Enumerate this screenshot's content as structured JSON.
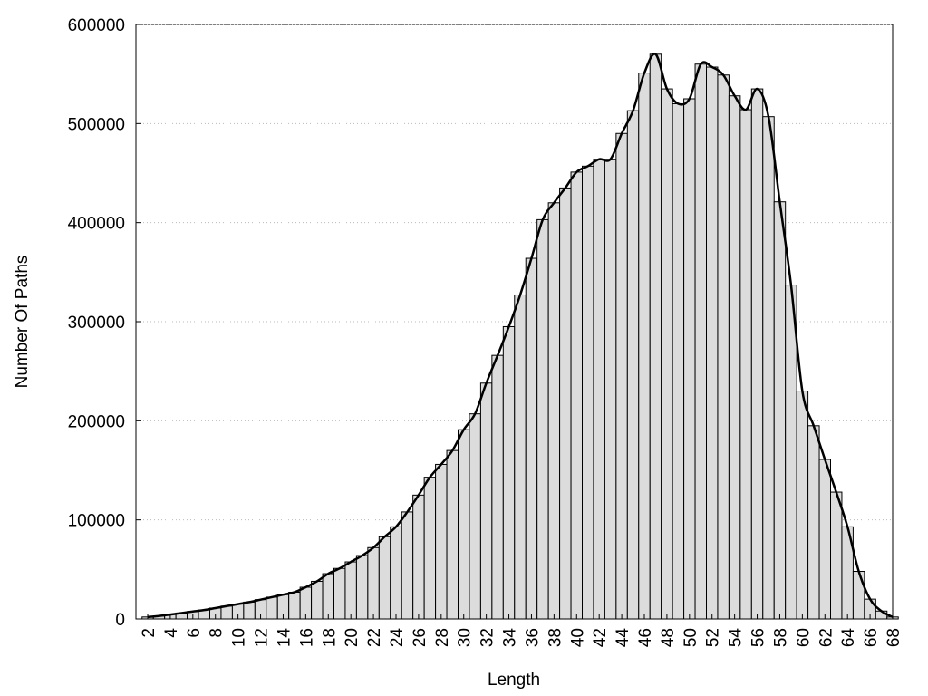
{
  "chart_data": {
    "type": "bar",
    "x_label": "Length",
    "y_label": "Number Of Paths",
    "categories": [
      "2",
      null,
      "4",
      null,
      "6",
      null,
      "8",
      null,
      "10",
      null,
      "12",
      null,
      "14",
      null,
      "16",
      null,
      "18",
      null,
      "20",
      null,
      "22",
      null,
      "24",
      null,
      "26",
      null,
      "28",
      null,
      "30",
      null,
      "32",
      null,
      "34",
      null,
      "36",
      null,
      "38",
      null,
      "40",
      null,
      "42",
      null,
      "44",
      null,
      "46",
      null,
      "48",
      null,
      "50",
      null,
      "52",
      null,
      "54",
      null,
      "56",
      null,
      "58",
      null,
      "60",
      null,
      "62",
      null,
      "64",
      null,
      "66",
      null,
      "68"
    ],
    "values": [
      2000,
      3000,
      4500,
      6000,
      7500,
      9000,
      11000,
      13000,
      15000,
      17000,
      19500,
      22000,
      24500,
      27000,
      32000,
      38000,
      45700,
      51000,
      57600,
      64000,
      72000,
      83000,
      93000,
      108000,
      125000,
      143000,
      156000,
      170000,
      191000,
      207000,
      238000,
      266000,
      295000,
      327000,
      364000,
      403000,
      420000,
      435000,
      451000,
      457000,
      464000,
      464000,
      490000,
      513000,
      551000,
      570000,
      535000,
      520000,
      525000,
      560000,
      557000,
      549000,
      528000,
      514000,
      535000,
      507000,
      421000,
      337000,
      230000,
      195000,
      161000,
      128000,
      93000,
      48000,
      20000,
      8000,
      2000
    ],
    "color": "#dcdcdc",
    "smooth_line": true,
    "line_color": "#000000",
    "ylim": [
      0,
      600000
    ],
    "yticks": [
      0,
      100000,
      200000,
      300000,
      400000,
      500000,
      600000
    ],
    "grid": true
  }
}
